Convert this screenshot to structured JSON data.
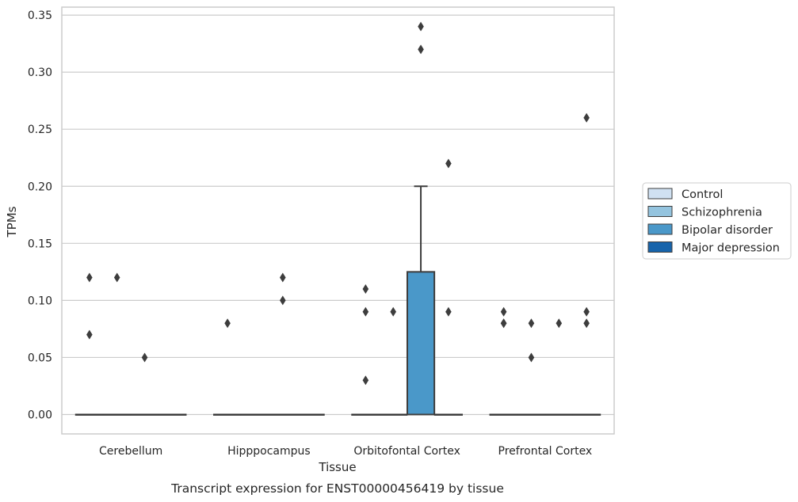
{
  "chart_data": {
    "type": "box",
    "xlabel": "Tissue",
    "ylabel": "TPMs",
    "caption": "Transcript expression for ENST00000456419 by tissue",
    "categories": [
      "Cerebellum",
      "Hipppocampus",
      "Orbitofontal Cortex",
      "Prefrontal Cortex"
    ],
    "ylim": [
      -0.017,
      0.357
    ],
    "yticks": [
      0.0,
      0.05,
      0.1,
      0.15,
      0.2,
      0.25,
      0.3,
      0.35
    ],
    "ytick_labels": [
      "0.00",
      "0.05",
      "0.10",
      "0.15",
      "0.20",
      "0.25",
      "0.30",
      "0.35"
    ],
    "grid": "horizontal",
    "legend_position": "right",
    "series": [
      {
        "name": "Control",
        "color": "#d0e1f2",
        "boxes": [
          {
            "category": "Cerebellum",
            "q1": 0,
            "median": 0,
            "q3": 0,
            "whisker_low": 0,
            "whisker_high": 0,
            "outliers": [
              0.12,
              0.07
            ]
          },
          {
            "category": "Hipppocampus",
            "q1": 0,
            "median": 0,
            "q3": 0,
            "whisker_low": 0,
            "whisker_high": 0,
            "outliers": [
              0.08
            ]
          },
          {
            "category": "Orbitofontal Cortex",
            "q1": 0,
            "median": 0,
            "q3": 0,
            "whisker_low": 0,
            "whisker_high": 0,
            "outliers": [
              0.11,
              0.09,
              0.03
            ]
          },
          {
            "category": "Prefrontal Cortex",
            "q1": 0,
            "median": 0,
            "q3": 0,
            "whisker_low": 0,
            "whisker_high": 0,
            "outliers": [
              0.09,
              0.08,
              0.08
            ]
          }
        ]
      },
      {
        "name": "Schizophrenia",
        "color": "#94c4df",
        "boxes": [
          {
            "category": "Cerebellum",
            "q1": 0,
            "median": 0,
            "q3": 0,
            "whisker_low": 0,
            "whisker_high": 0,
            "outliers": [
              0.12
            ]
          },
          {
            "category": "Hipppocampus",
            "q1": 0,
            "median": 0,
            "q3": 0,
            "whisker_low": 0,
            "whisker_high": 0,
            "outliers": []
          },
          {
            "category": "Orbitofontal Cortex",
            "q1": 0,
            "median": 0,
            "q3": 0,
            "whisker_low": 0,
            "whisker_high": 0,
            "outliers": [
              0.09
            ]
          },
          {
            "category": "Prefrontal Cortex",
            "q1": 0,
            "median": 0,
            "q3": 0,
            "whisker_low": 0,
            "whisker_high": 0,
            "outliers": [
              0.08,
              0.05
            ]
          }
        ]
      },
      {
        "name": "Bipolar disorder",
        "color": "#4a98c9",
        "boxes": [
          {
            "category": "Cerebellum",
            "q1": 0,
            "median": 0,
            "q3": 0,
            "whisker_low": 0,
            "whisker_high": 0,
            "outliers": [
              0.05
            ]
          },
          {
            "category": "Hipppocampus",
            "q1": 0,
            "median": 0,
            "q3": 0,
            "whisker_low": 0,
            "whisker_high": 0,
            "outliers": [
              0.12,
              0.1
            ]
          },
          {
            "category": "Orbitofontal Cortex",
            "q1": 0,
            "median": 0,
            "q3": 0.125,
            "whisker_low": 0,
            "whisker_high": 0.2,
            "outliers": [
              0.34,
              0.32
            ]
          },
          {
            "category": "Prefrontal Cortex",
            "q1": 0,
            "median": 0,
            "q3": 0,
            "whisker_low": 0,
            "whisker_high": 0,
            "outliers": [
              0.08
            ]
          }
        ]
      },
      {
        "name": "Major depression",
        "color": "#1764ab",
        "boxes": [
          {
            "category": "Cerebellum",
            "q1": 0,
            "median": 0,
            "q3": 0,
            "whisker_low": 0,
            "whisker_high": 0,
            "outliers": []
          },
          {
            "category": "Hipppocampus",
            "q1": 0,
            "median": 0,
            "q3": 0,
            "whisker_low": 0,
            "whisker_high": 0,
            "outliers": []
          },
          {
            "category": "Orbitofontal Cortex",
            "q1": 0,
            "median": 0,
            "q3": 0,
            "whisker_low": 0,
            "whisker_high": 0,
            "outliers": [
              0.22,
              0.09
            ]
          },
          {
            "category": "Prefrontal Cortex",
            "q1": 0,
            "median": 0,
            "q3": 0,
            "whisker_low": 0,
            "whisker_high": 0,
            "outliers": [
              0.26,
              0.09,
              0.08
            ]
          }
        ]
      }
    ]
  }
}
